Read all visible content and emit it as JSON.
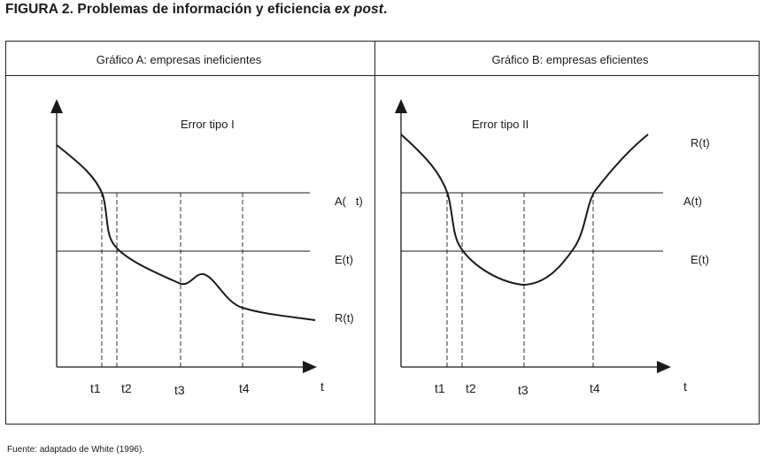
{
  "figure": {
    "title_prefix": "FIGURA 2. Problemas de información y eficiencia ",
    "title_emphasis": "ex post",
    "title_suffix": ".",
    "source": "Fuente: adaptado de White (1996)."
  },
  "panels": [
    {
      "title": "Gráfico A: empresas ineficientes",
      "annotation": "Error tipo I",
      "curve_labels": {
        "A": "A(   t)",
        "E": "E(t)",
        "R": "R(t)"
      },
      "x_ticks": [
        "t1",
        "t2",
        "t3",
        "t4"
      ],
      "x_axis_label": "t"
    },
    {
      "title": "Gráfico B: empresas eficientes",
      "annotation": "Error tipo II",
      "curve_labels": {
        "A": "A(t)",
        "E": "E(t)",
        "R": "R(t)"
      },
      "x_ticks": [
        "t1",
        "t2",
        "t3",
        "t4"
      ],
      "x_axis_label": "t"
    }
  ],
  "colors": {
    "ink": "#1a1a1a",
    "border": "#222222"
  }
}
